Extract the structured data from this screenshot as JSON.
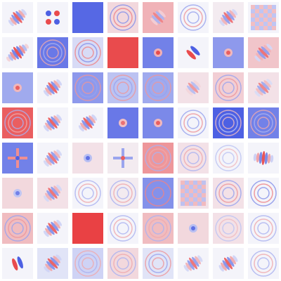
{
  "colors": {
    "background": "#ffffff",
    "positive": "#e8383a",
    "negative": "#3a4fe0",
    "neutral": "#f4f4fa"
  },
  "filters": [
    {
      "row": 1,
      "col": 1,
      "base": 0.0,
      "pattern": "gabor",
      "angle": -40,
      "freq": 3,
      "strength": 0.8
    },
    {
      "row": 1,
      "col": 2,
      "base": 0.0,
      "pattern": "quad",
      "strength": 0.9
    },
    {
      "row": 1,
      "col": 3,
      "base": -0.85,
      "pattern": "flat",
      "strength": 0.2
    },
    {
      "row": 1,
      "col": 4,
      "base": 0.15,
      "pattern": "rings",
      "strength": 0.6
    },
    {
      "row": 1,
      "col": 5,
      "base": 0.35,
      "pattern": "gabor",
      "angle": -45,
      "freq": 2,
      "strength": 0.6
    },
    {
      "row": 1,
      "col": 6,
      "base": 0.0,
      "pattern": "rings",
      "strength": 0.5
    },
    {
      "row": 1,
      "col": 7,
      "base": 0.05,
      "pattern": "gabor",
      "angle": -40,
      "freq": 3,
      "strength": 0.7
    },
    {
      "row": 1,
      "col": 8,
      "base": 0.0,
      "pattern": "check",
      "strength": 0.6
    },
    {
      "row": 2,
      "col": 1,
      "base": 0.0,
      "pattern": "gabor",
      "angle": -35,
      "freq": 4,
      "strength": 0.9
    },
    {
      "row": 2,
      "col": 2,
      "base": -0.75,
      "pattern": "rings",
      "strength": 0.4
    },
    {
      "row": 2,
      "col": 3,
      "base": -0.15,
      "pattern": "rings",
      "strength": 0.6
    },
    {
      "row": 2,
      "col": 4,
      "base": 0.9,
      "pattern": "flat",
      "strength": 0.3
    },
    {
      "row": 2,
      "col": 5,
      "base": -0.7,
      "pattern": "dot",
      "strength": 0.9
    },
    {
      "row": 2,
      "col": 6,
      "base": 0.0,
      "pattern": "dipole",
      "angle": -45,
      "strength": 0.9
    },
    {
      "row": 2,
      "col": 7,
      "base": -0.55,
      "pattern": "dot",
      "strength": 0.8
    },
    {
      "row": 2,
      "col": 8,
      "base": 0.25,
      "pattern": "gabor",
      "angle": -45,
      "freq": 3,
      "strength": 0.7
    },
    {
      "row": 3,
      "col": 1,
      "base": -0.45,
      "pattern": "dot",
      "strength": 0.8
    },
    {
      "row": 3,
      "col": 2,
      "base": 0.0,
      "pattern": "gabor",
      "angle": -40,
      "freq": 3,
      "strength": 0.8
    },
    {
      "row": 3,
      "col": 3,
      "base": -0.55,
      "pattern": "rings",
      "strength": 0.5
    },
    {
      "row": 3,
      "col": 4,
      "base": -0.3,
      "pattern": "rings",
      "strength": 0.5
    },
    {
      "row": 3,
      "col": 5,
      "base": -0.45,
      "pattern": "rings",
      "strength": 0.5
    },
    {
      "row": 3,
      "col": 6,
      "base": 0.1,
      "pattern": "gabor",
      "angle": -45,
      "freq": 2,
      "strength": 0.5
    },
    {
      "row": 3,
      "col": 7,
      "base": 0.2,
      "pattern": "rings",
      "strength": 0.5
    },
    {
      "row": 3,
      "col": 8,
      "base": 0.1,
      "pattern": "gabor",
      "angle": -45,
      "freq": 3,
      "strength": 0.6
    },
    {
      "row": 4,
      "col": 1,
      "base": 0.8,
      "pattern": "rings",
      "strength": 0.4
    },
    {
      "row": 4,
      "col": 2,
      "base": 0.0,
      "pattern": "gabor",
      "angle": -40,
      "freq": 3,
      "strength": 0.8
    },
    {
      "row": 4,
      "col": 3,
      "base": 0.0,
      "pattern": "gabor",
      "angle": -40,
      "freq": 3,
      "strength": 0.8
    },
    {
      "row": 4,
      "col": 4,
      "base": -0.75,
      "pattern": "dot",
      "strength": 0.7
    },
    {
      "row": 4,
      "col": 5,
      "base": -0.65,
      "pattern": "dot",
      "strength": 0.8
    },
    {
      "row": 4,
      "col": 6,
      "base": 0.0,
      "pattern": "rings",
      "strength": 0.5
    },
    {
      "row": 4,
      "col": 7,
      "base": -0.9,
      "pattern": "rings",
      "strength": 0.3
    },
    {
      "row": 4,
      "col": 8,
      "base": -0.7,
      "pattern": "rings",
      "strength": 0.4
    },
    {
      "row": 5,
      "col": 1,
      "base": -0.7,
      "pattern": "cross",
      "strength": 0.9
    },
    {
      "row": 5,
      "col": 2,
      "base": 0.0,
      "pattern": "gabor",
      "angle": -40,
      "freq": 3,
      "strength": 0.7
    },
    {
      "row": 5,
      "col": 3,
      "base": 0.1,
      "pattern": "dot",
      "strength": 0.8
    },
    {
      "row": 5,
      "col": 4,
      "base": 0.05,
      "pattern": "cross",
      "strength": 0.8
    },
    {
      "row": 5,
      "col": 5,
      "base": 0.5,
      "pattern": "rings",
      "strength": 0.4
    },
    {
      "row": 5,
      "col": 6,
      "base": 0.1,
      "pattern": "rings",
      "strength": 0.4
    },
    {
      "row": 5,
      "col": 7,
      "base": 0.0,
      "pattern": "rings",
      "strength": 0.3
    },
    {
      "row": 5,
      "col": 8,
      "base": 0.0,
      "pattern": "gabor",
      "angle": 5,
      "freq": 3,
      "strength": 0.9
    },
    {
      "row": 6,
      "col": 1,
      "base": 0.15,
      "pattern": "dot",
      "strength": 0.7
    },
    {
      "row": 6,
      "col": 2,
      "base": 0.1,
      "pattern": "gabor",
      "angle": -40,
      "freq": 3,
      "strength": 0.7
    },
    {
      "row": 6,
      "col": 3,
      "base": 0.0,
      "pattern": "rings",
      "strength": 0.4
    },
    {
      "row": 6,
      "col": 4,
      "base": 0.05,
      "pattern": "rings",
      "strength": 0.4
    },
    {
      "row": 6,
      "col": 5,
      "base": -0.6,
      "pattern": "rings",
      "strength": 0.6
    },
    {
      "row": 6,
      "col": 6,
      "base": 0.1,
      "pattern": "check",
      "strength": 0.6
    },
    {
      "row": 6,
      "col": 7,
      "base": 0.1,
      "pattern": "rings",
      "strength": 0.5
    },
    {
      "row": 6,
      "col": 8,
      "base": 0.0,
      "pattern": "rings",
      "strength": 0.6
    },
    {
      "row": 7,
      "col": 1,
      "base": 0.3,
      "pattern": "rings",
      "strength": 0.5
    },
    {
      "row": 7,
      "col": 2,
      "base": 0.0,
      "pattern": "gabor",
      "angle": -40,
      "freq": 3,
      "strength": 0.8
    },
    {
      "row": 7,
      "col": 3,
      "base": 0.95,
      "pattern": "flat",
      "strength": 0.2
    },
    {
      "row": 7,
      "col": 4,
      "base": 0.0,
      "pattern": "rings",
      "strength": 0.4
    },
    {
      "row": 7,
      "col": 5,
      "base": 0.3,
      "pattern": "rings",
      "strength": 0.4
    },
    {
      "row": 7,
      "col": 6,
      "base": 0.15,
      "pattern": "dot",
      "strength": 0.8
    },
    {
      "row": 7,
      "col": 7,
      "base": 0.1,
      "pattern": "rings",
      "strength": 0.3
    },
    {
      "row": 7,
      "col": 8,
      "base": 0.0,
      "pattern": "rings",
      "strength": 0.4
    },
    {
      "row": 8,
      "col": 1,
      "base": 0.0,
      "pattern": "dipole",
      "angle": -20,
      "strength": 0.9
    },
    {
      "row": 8,
      "col": 2,
      "base": -0.1,
      "pattern": "gabor",
      "angle": -45,
      "freq": 3,
      "strength": 0.8
    },
    {
      "row": 8,
      "col": 3,
      "base": -0.2,
      "pattern": "rings",
      "strength": 0.4
    },
    {
      "row": 8,
      "col": 4,
      "base": 0.15,
      "pattern": "rings",
      "strength": 0.4
    },
    {
      "row": 8,
      "col": 5,
      "base": -0.1,
      "pattern": "rings",
      "strength": 0.5
    },
    {
      "row": 8,
      "col": 6,
      "base": 0.0,
      "pattern": "gabor",
      "angle": -35,
      "freq": 3,
      "strength": 0.7
    },
    {
      "row": 8,
      "col": 7,
      "base": 0.0,
      "pattern": "gabor",
      "angle": -35,
      "freq": 3,
      "strength": 0.8
    },
    {
      "row": 8,
      "col": 8,
      "base": 0.0,
      "pattern": "rings",
      "strength": 0.4
    }
  ]
}
